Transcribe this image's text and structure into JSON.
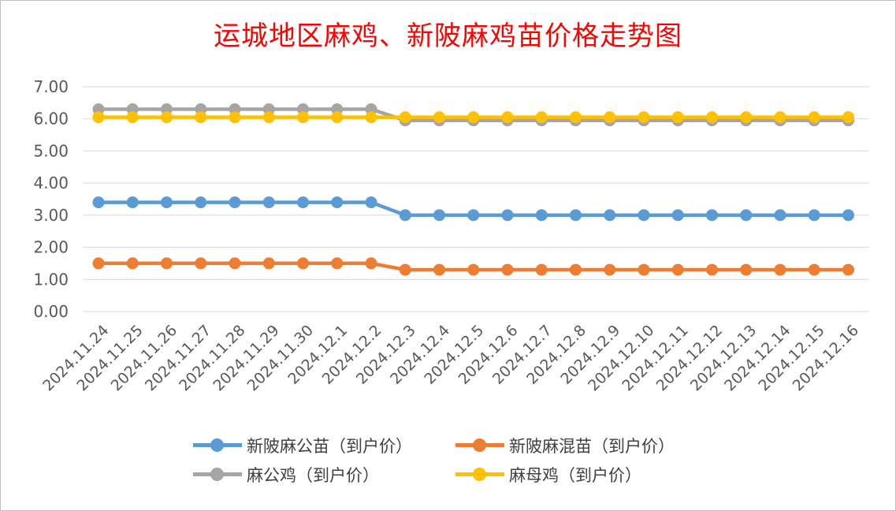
{
  "chart_data": {
    "type": "line",
    "title": "运城地区麻鸡、新陂麻鸡苗价格走势图",
    "categories": [
      "2024.11.24",
      "2024.11.25",
      "2024.11.26",
      "2024.11.27",
      "2024.11.28",
      "2024.11.29",
      "2024.11.30",
      "2024.12.1",
      "2024.12.2",
      "2024.12.3",
      "2024.12.4",
      "2024.12.5",
      "2024.12.6",
      "2024.12.7",
      "2024.12.8",
      "2024.12.9",
      "2024.12.10",
      "2024.12.11",
      "2024.12.12",
      "2024.12.13",
      "2024.12.14",
      "2024.12.15",
      "2024.12.16"
    ],
    "ylim": [
      0,
      7
    ],
    "yticks": [
      "0.00",
      "1.00",
      "2.00",
      "3.00",
      "4.00",
      "5.00",
      "6.00",
      "7.00"
    ],
    "grid": true,
    "legend_position": "bottom",
    "series": [
      {
        "name": "新陂麻公苗（到户价）",
        "color": "#5b9bd5",
        "values": [
          3.4,
          3.4,
          3.4,
          3.4,
          3.4,
          3.4,
          3.4,
          3.4,
          3.4,
          3.0,
          3.0,
          3.0,
          3.0,
          3.0,
          3.0,
          3.0,
          3.0,
          3.0,
          3.0,
          3.0,
          3.0,
          3.0,
          3.0
        ]
      },
      {
        "name": "新陂麻混苗（到户价）",
        "color": "#ed7d31",
        "values": [
          1.5,
          1.5,
          1.5,
          1.5,
          1.5,
          1.5,
          1.5,
          1.5,
          1.5,
          1.3,
          1.3,
          1.3,
          1.3,
          1.3,
          1.3,
          1.3,
          1.3,
          1.3,
          1.3,
          1.3,
          1.3,
          1.3,
          1.3
        ]
      },
      {
        "name": "麻公鸡（到户价）",
        "color": "#a5a5a5",
        "values": [
          6.3,
          6.3,
          6.3,
          6.3,
          6.3,
          6.3,
          6.3,
          6.3,
          6.3,
          5.95,
          5.95,
          5.95,
          5.95,
          5.95,
          5.95,
          5.95,
          5.95,
          5.95,
          5.95,
          5.95,
          5.95,
          5.95,
          5.95
        ]
      },
      {
        "name": "麻母鸡（到户价）",
        "color": "#ffc000",
        "values": [
          6.05,
          6.05,
          6.05,
          6.05,
          6.05,
          6.05,
          6.05,
          6.05,
          6.05,
          6.05,
          6.05,
          6.05,
          6.05,
          6.05,
          6.05,
          6.05,
          6.05,
          6.05,
          6.05,
          6.05,
          6.05,
          6.05,
          6.05
        ]
      }
    ]
  }
}
